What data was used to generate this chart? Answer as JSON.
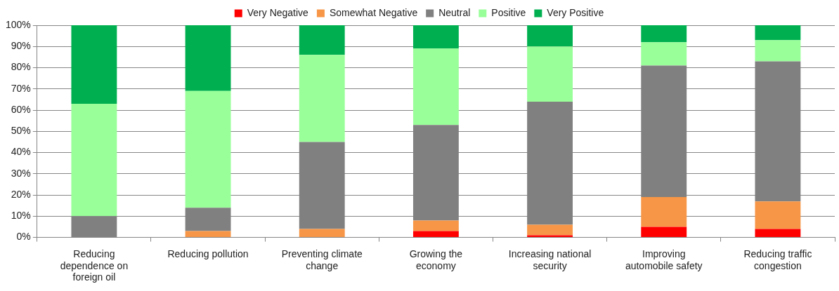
{
  "chart_data": {
    "type": "bar",
    "stacked": true,
    "legend": "top",
    "grid": "y",
    "categories": [
      "Reducing dependence on foreign oil",
      "Reducing pollution",
      "Preventing climate change",
      "Growing the economy",
      "Increasing national security",
      "Improving automobile safety",
      "Reducing traffic congestion"
    ],
    "ylim": [
      0,
      100
    ],
    "yticks": [
      {
        "value": 0,
        "label": "0%"
      },
      {
        "value": 10,
        "label": "10%"
      },
      {
        "value": 20,
        "label": "20%"
      },
      {
        "value": 30,
        "label": "30%"
      },
      {
        "value": 40,
        "label": "40%"
      },
      {
        "value": 50,
        "label": "50%"
      },
      {
        "value": 60,
        "label": "60%"
      },
      {
        "value": 70,
        "label": "70%"
      },
      {
        "value": 80,
        "label": "80%"
      },
      {
        "value": 90,
        "label": "90%"
      },
      {
        "value": 100,
        "label": "100%"
      }
    ],
    "series": [
      {
        "name": "Very Negative",
        "color": "#ff0000",
        "values": [
          0,
          0,
          0,
          3,
          1,
          5,
          4
        ]
      },
      {
        "name": "Somewhat Negative",
        "color": "#f79646",
        "values": [
          0,
          3,
          4,
          5,
          5,
          14,
          13
        ]
      },
      {
        "name": "Neutral",
        "color": "#808080",
        "values": [
          10,
          11,
          41,
          45,
          58,
          62,
          66
        ]
      },
      {
        "name": "Positive",
        "color": "#99ff99",
        "values": [
          53,
          55,
          41,
          36,
          26,
          11,
          10
        ]
      },
      {
        "name": "Very Positive",
        "color": "#00b050",
        "values": [
          37,
          31,
          14,
          11,
          10,
          8,
          7
        ]
      }
    ]
  }
}
